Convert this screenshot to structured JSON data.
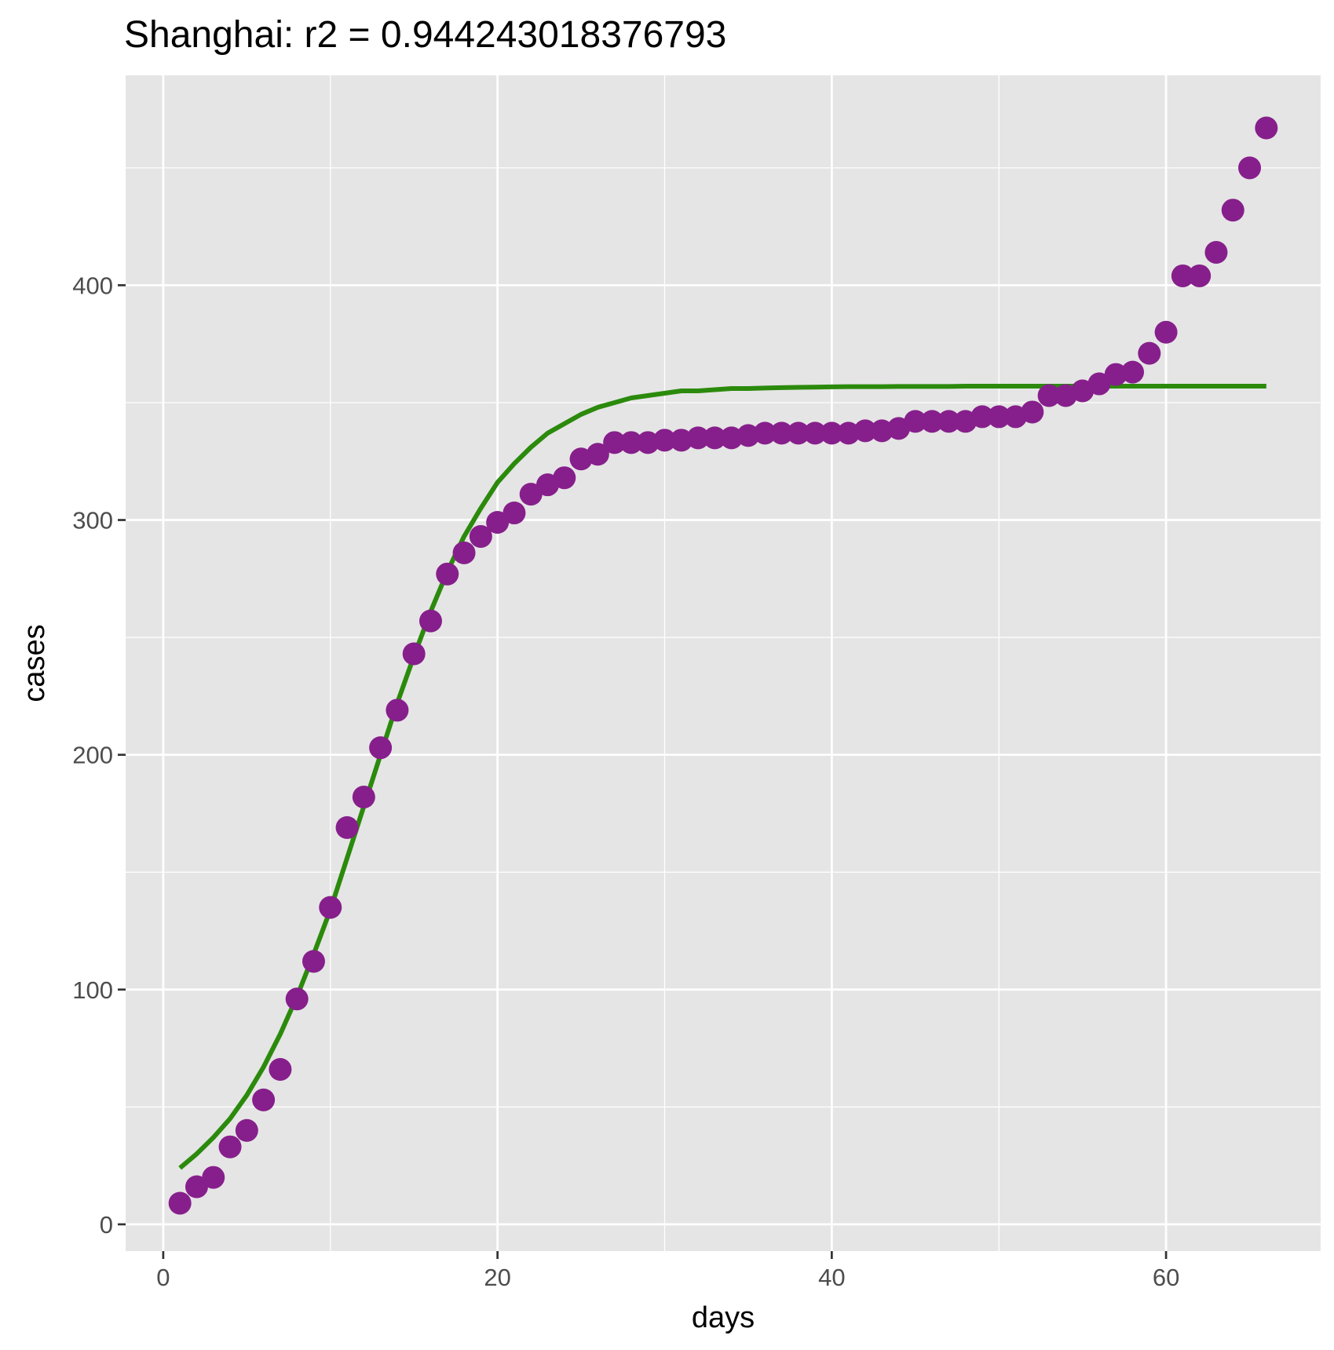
{
  "chart_data": {
    "type": "scatter",
    "title": "Shanghai: r2 = 0.944243018376793",
    "xlabel": "days",
    "ylabel": "cases",
    "xlim": [
      -2.25,
      69.25
    ],
    "ylim": [
      -11.4,
      489.4
    ],
    "x_ticks": [
      0,
      20,
      40,
      60
    ],
    "x_tick_labels": [
      "0",
      "20",
      "40",
      "60"
    ],
    "x_minor_ticks": [
      10,
      30,
      50
    ],
    "y_ticks": [
      0,
      100,
      200,
      300,
      400
    ],
    "y_tick_labels": [
      "0",
      "100",
      "200",
      "300",
      "400"
    ],
    "y_minor_ticks": [
      50,
      150,
      250,
      350,
      450
    ],
    "grid": true,
    "legend": "none",
    "colors": {
      "panel_background": "#e5e5e5",
      "grid": "#ffffff",
      "points": "#861f8b",
      "fit_line": "#2b8a0c"
    },
    "series": [
      {
        "kind": "points",
        "x": [
          1,
          2,
          3,
          4,
          5,
          6,
          7,
          8,
          9,
          10,
          11,
          12,
          13,
          14,
          15,
          16,
          17,
          18,
          19,
          20,
          21,
          22,
          23,
          24,
          25,
          26,
          27,
          28,
          29,
          30,
          31,
          32,
          33,
          34,
          35,
          36,
          37,
          38,
          39,
          40,
          41,
          42,
          43,
          44,
          45,
          46,
          47,
          48,
          49,
          50,
          51,
          52,
          53,
          54,
          55,
          56,
          57,
          58,
          59,
          60,
          61,
          62,
          63,
          64,
          65,
          66
        ],
        "y": [
          9,
          16,
          20,
          33,
          40,
          53,
          66,
          96,
          112,
          135,
          169,
          182,
          203,
          219,
          243,
          257,
          277,
          286,
          293,
          299,
          303,
          311,
          315,
          318,
          326,
          328,
          333,
          333,
          333,
          334,
          334,
          335,
          335,
          335,
          336,
          337,
          337,
          337,
          337,
          337,
          337,
          338,
          338,
          339,
          342,
          342,
          342,
          342,
          344,
          344,
          344,
          346,
          353,
          353,
          355,
          358,
          362,
          363,
          371,
          380,
          404,
          404,
          414,
          432,
          450,
          467
        ]
      },
      {
        "kind": "fit_line",
        "x": [
          1,
          2,
          3,
          4,
          5,
          6,
          7,
          8,
          9,
          10,
          11,
          12,
          13,
          14,
          15,
          16,
          17,
          18,
          19,
          20,
          21,
          22,
          23,
          24,
          25,
          26,
          27,
          28,
          29,
          30,
          31,
          32,
          33,
          34,
          35,
          36,
          37,
          38,
          39,
          40,
          41,
          42,
          43,
          44,
          45,
          46,
          47,
          48,
          49,
          50,
          51,
          52,
          53,
          54,
          55,
          56,
          57,
          58,
          59,
          60,
          61,
          62,
          63,
          64,
          65,
          66
        ],
        "y": [
          24,
          30,
          37,
          45,
          55,
          67,
          81,
          97,
          115,
          134,
          156,
          178,
          200,
          222,
          242,
          261,
          278,
          293,
          305,
          316,
          324,
          331,
          337,
          341,
          345,
          348,
          350,
          352,
          353,
          354,
          355,
          355,
          355.5,
          356,
          356,
          356.2,
          356.4,
          356.5,
          356.6,
          356.7,
          356.8,
          356.8,
          356.8,
          356.9,
          356.9,
          356.9,
          356.9,
          357,
          357,
          357,
          357,
          357,
          357,
          357,
          357,
          357,
          357,
          357,
          357,
          357,
          357,
          357,
          357,
          357,
          357,
          357
        ]
      }
    ]
  }
}
